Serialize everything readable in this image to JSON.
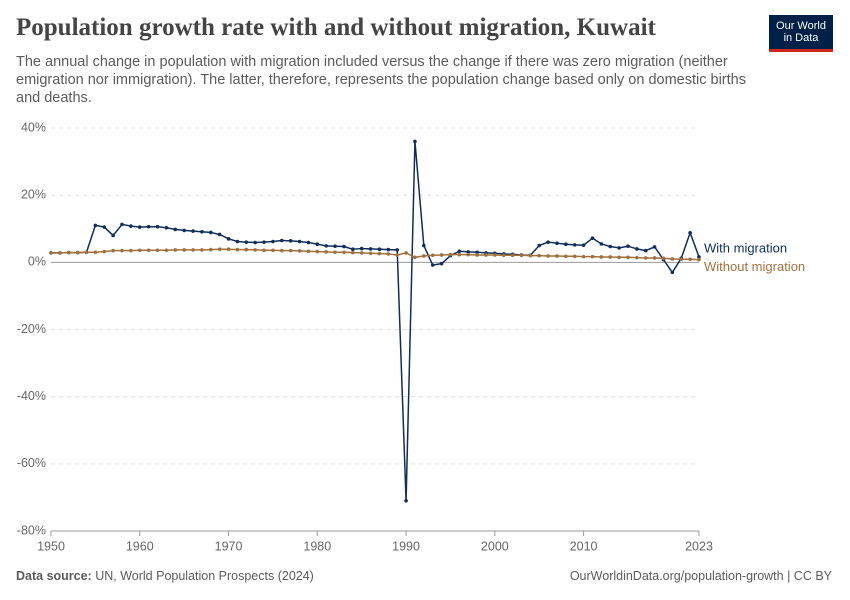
{
  "chart_data": {
    "type": "line",
    "title": "Population growth rate with and without migration, Kuwait",
    "subtitle": "The annual change in population with migration included versus the change if there was zero migration (neither emigration nor immigration). The latter, therefore, represents the population change based only on domestic births and deaths.",
    "logo": [
      "Our World",
      "in Data"
    ],
    "source_label": "Data source:",
    "source": "UN, World Population Prospects (2024)",
    "url": "OurWorldinData.org/population-growth | CC BY",
    "x": [
      1950,
      1951,
      1952,
      1953,
      1954,
      1955,
      1956,
      1957,
      1958,
      1959,
      1960,
      1961,
      1962,
      1963,
      1964,
      1965,
      1966,
      1967,
      1968,
      1969,
      1970,
      1971,
      1972,
      1973,
      1974,
      1975,
      1976,
      1977,
      1978,
      1979,
      1980,
      1981,
      1982,
      1983,
      1984,
      1985,
      1986,
      1987,
      1988,
      1989,
      1990,
      1991,
      1992,
      1993,
      1994,
      1995,
      1996,
      1997,
      1998,
      1999,
      2000,
      2001,
      2002,
      2003,
      2004,
      2005,
      2006,
      2007,
      2008,
      2009,
      2010,
      2011,
      2012,
      2013,
      2014,
      2015,
      2016,
      2017,
      2018,
      2019,
      2020,
      2021,
      2022,
      2023
    ],
    "series": [
      {
        "name": "With migration",
        "color": "#0f2e5b",
        "values": [
          2.8,
          2.8,
          2.9,
          2.9,
          3.0,
          11.0,
          10.5,
          8.0,
          11.3,
          10.8,
          10.5,
          10.6,
          10.6,
          10.3,
          9.8,
          9.5,
          9.3,
          9.1,
          8.9,
          8.3,
          7.0,
          6.2,
          6.0,
          5.9,
          6.0,
          6.2,
          6.5,
          6.4,
          6.2,
          5.9,
          5.4,
          4.9,
          4.8,
          4.7,
          3.9,
          4.1,
          4.0,
          3.9,
          3.8,
          3.7,
          -71,
          36,
          5.0,
          -0.8,
          -0.4,
          2.0,
          3.3,
          3.1,
          3.0,
          2.8,
          2.7,
          2.5,
          2.4,
          2.2,
          2.1,
          5.0,
          6.0,
          5.7,
          5.4,
          5.2,
          5.1,
          7.2,
          5.5,
          4.7,
          4.3,
          4.8,
          4.0,
          3.5,
          4.6,
          0.8,
          -3.0,
          1.2,
          8.8,
          1.6
        ]
      },
      {
        "name": "Without migration",
        "color": "#a2703f",
        "values": [
          2.8,
          2.8,
          2.9,
          2.9,
          3.0,
          3.0,
          3.2,
          3.5,
          3.5,
          3.5,
          3.6,
          3.6,
          3.6,
          3.6,
          3.7,
          3.7,
          3.7,
          3.7,
          3.8,
          3.9,
          3.9,
          3.8,
          3.8,
          3.7,
          3.6,
          3.6,
          3.5,
          3.5,
          3.4,
          3.3,
          3.2,
          3.1,
          3.0,
          3.0,
          2.9,
          2.8,
          2.7,
          2.6,
          2.5,
          2.2,
          2.8,
          1.5,
          1.9,
          2.1,
          2.2,
          2.3,
          2.3,
          2.3,
          2.2,
          2.2,
          2.2,
          2.1,
          2.1,
          2.1,
          2.0,
          2.0,
          1.9,
          1.9,
          1.8,
          1.8,
          1.7,
          1.7,
          1.6,
          1.6,
          1.5,
          1.5,
          1.4,
          1.3,
          1.3,
          1.2,
          1.0,
          0.9,
          0.9,
          0.8
        ]
      }
    ],
    "xlim": [
      1950,
      2023
    ],
    "xticks": [
      1950,
      1960,
      1970,
      1980,
      1990,
      2000,
      2010,
      2023
    ],
    "ylim": [
      -80,
      40
    ],
    "yticks": [
      {
        "value": -80,
        "label": "-80%"
      },
      {
        "value": -60,
        "label": "-60%"
      },
      {
        "value": -40,
        "label": "-40%"
      },
      {
        "value": -20,
        "label": "-20%"
      },
      {
        "value": 0,
        "label": "0%"
      },
      {
        "value": 20,
        "label": "20%"
      },
      {
        "value": 40,
        "label": "40%"
      }
    ],
    "grid": true
  }
}
